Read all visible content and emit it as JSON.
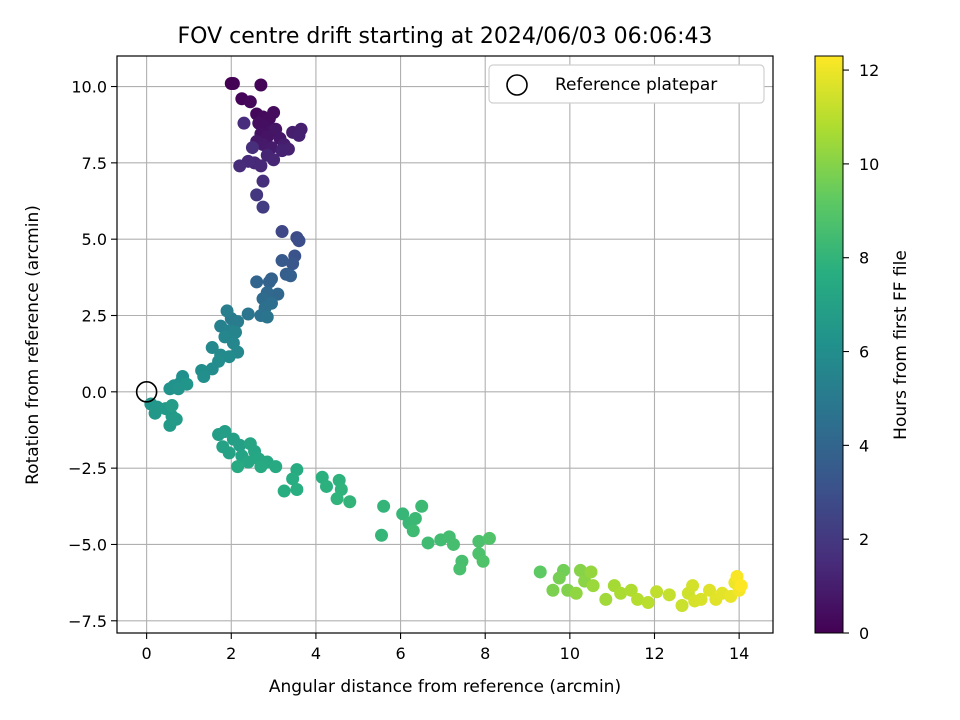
{
  "chart_data": {
    "type": "scatter",
    "title": "FOV centre drift starting at 2024/06/03 06:06:43",
    "xlabel": "Angular distance from reference (arcmin)",
    "ylabel": "Rotation from reference (arcmin)",
    "xlim": [
      -0.7,
      14.8
    ],
    "ylim": [
      -7.9,
      11.0
    ],
    "xticks": [
      0,
      2,
      4,
      6,
      8,
      10,
      12,
      14
    ],
    "yticks": [
      -7.5,
      -5.0,
      -2.5,
      0.0,
      2.5,
      5.0,
      7.5,
      10.0
    ],
    "xtick_labels": [
      "0",
      "2",
      "4",
      "6",
      "8",
      "10",
      "12",
      "14"
    ],
    "ytick_labels": [
      "−7.5",
      "−5.0",
      "−2.5",
      "0.0",
      "2.5",
      "5.0",
      "7.5",
      "10.0"
    ],
    "grid": true,
    "legend": {
      "position": "top-right",
      "entries": [
        {
          "label": "Reference platepar",
          "marker": "open-circle"
        }
      ]
    },
    "reference_point": {
      "x": 0.0,
      "y": 0.0
    },
    "colorbar": {
      "label": "Hours from first FF file",
      "colormap": "viridis",
      "range": [
        0,
        12.3
      ],
      "ticks": [
        0,
        2,
        4,
        6,
        8,
        10,
        12
      ],
      "tick_labels": [
        "0",
        "2",
        "4",
        "6",
        "8",
        "10",
        "12"
      ]
    },
    "series": [
      {
        "color_by": "hours",
        "points": [
          {
            "x": 2.0,
            "y": 10.1,
            "c": 0.0
          },
          {
            "x": 2.05,
            "y": 10.1,
            "c": 0.05
          },
          {
            "x": 2.7,
            "y": 10.05,
            "c": 0.1
          },
          {
            "x": 2.25,
            "y": 9.6,
            "c": 0.15
          },
          {
            "x": 2.45,
            "y": 9.5,
            "c": 0.2
          },
          {
            "x": 2.6,
            "y": 9.1,
            "c": 0.25
          },
          {
            "x": 2.75,
            "y": 9.0,
            "c": 0.3
          },
          {
            "x": 2.9,
            "y": 8.95,
            "c": 0.35
          },
          {
            "x": 3.0,
            "y": 9.15,
            "c": 0.4
          },
          {
            "x": 2.65,
            "y": 8.8,
            "c": 0.45
          },
          {
            "x": 2.8,
            "y": 8.7,
            "c": 0.5
          },
          {
            "x": 2.95,
            "y": 8.55,
            "c": 0.55
          },
          {
            "x": 2.7,
            "y": 8.45,
            "c": 0.6
          },
          {
            "x": 2.85,
            "y": 8.35,
            "c": 0.65
          },
          {
            "x": 3.05,
            "y": 8.6,
            "c": 0.7
          },
          {
            "x": 3.15,
            "y": 8.3,
            "c": 0.75
          },
          {
            "x": 2.6,
            "y": 8.2,
            "c": 0.8
          },
          {
            "x": 2.75,
            "y": 8.1,
            "c": 0.85
          },
          {
            "x": 2.95,
            "y": 8.0,
            "c": 0.9
          },
          {
            "x": 3.25,
            "y": 8.1,
            "c": 0.95
          },
          {
            "x": 3.45,
            "y": 8.5,
            "c": 1.0
          },
          {
            "x": 3.65,
            "y": 8.6,
            "c": 1.05
          },
          {
            "x": 3.6,
            "y": 8.4,
            "c": 1.1
          },
          {
            "x": 3.35,
            "y": 7.95,
            "c": 1.15
          },
          {
            "x": 3.2,
            "y": 7.9,
            "c": 1.2
          },
          {
            "x": 2.85,
            "y": 7.75,
            "c": 1.25
          },
          {
            "x": 3.0,
            "y": 7.6,
            "c": 1.3
          },
          {
            "x": 2.55,
            "y": 7.5,
            "c": 1.35
          },
          {
            "x": 2.7,
            "y": 7.4,
            "c": 1.4
          },
          {
            "x": 2.4,
            "y": 7.55,
            "c": 1.45
          },
          {
            "x": 2.2,
            "y": 7.4,
            "c": 1.5
          },
          {
            "x": 2.3,
            "y": 8.8,
            "c": 1.55
          },
          {
            "x": 2.5,
            "y": 8.0,
            "c": 1.6
          },
          {
            "x": 2.75,
            "y": 6.9,
            "c": 1.65
          },
          {
            "x": 2.6,
            "y": 6.45,
            "c": 1.9
          },
          {
            "x": 2.75,
            "y": 6.05,
            "c": 2.2
          },
          {
            "x": 3.2,
            "y": 5.25,
            "c": 2.6
          },
          {
            "x": 3.55,
            "y": 5.05,
            "c": 2.8
          },
          {
            "x": 3.6,
            "y": 4.95,
            "c": 2.9
          },
          {
            "x": 3.5,
            "y": 4.45,
            "c": 3.1
          },
          {
            "x": 3.45,
            "y": 4.2,
            "c": 3.3
          },
          {
            "x": 3.2,
            "y": 4.3,
            "c": 3.4
          },
          {
            "x": 3.3,
            "y": 3.85,
            "c": 3.6
          },
          {
            "x": 3.4,
            "y": 3.8,
            "c": 3.7
          },
          {
            "x": 2.95,
            "y": 3.7,
            "c": 3.8
          },
          {
            "x": 2.9,
            "y": 3.6,
            "c": 3.9
          },
          {
            "x": 2.6,
            "y": 3.6,
            "c": 4.0
          },
          {
            "x": 3.1,
            "y": 3.2,
            "c": 4.1
          },
          {
            "x": 2.85,
            "y": 3.25,
            "c": 4.2
          },
          {
            "x": 2.75,
            "y": 3.05,
            "c": 4.3
          },
          {
            "x": 2.95,
            "y": 2.9,
            "c": 4.4
          },
          {
            "x": 2.8,
            "y": 2.75,
            "c": 4.5
          },
          {
            "x": 2.7,
            "y": 2.5,
            "c": 4.6
          },
          {
            "x": 2.85,
            "y": 2.45,
            "c": 4.7
          },
          {
            "x": 2.4,
            "y": 2.55,
            "c": 4.8
          },
          {
            "x": 2.0,
            "y": 2.4,
            "c": 5.0
          },
          {
            "x": 2.15,
            "y": 2.3,
            "c": 5.1
          },
          {
            "x": 1.9,
            "y": 2.65,
            "c": 5.2
          },
          {
            "x": 1.75,
            "y": 2.15,
            "c": 5.3
          },
          {
            "x": 1.95,
            "y": 2.0,
            "c": 5.4
          },
          {
            "x": 2.1,
            "y": 1.95,
            "c": 5.5
          },
          {
            "x": 1.85,
            "y": 1.8,
            "c": 5.6
          },
          {
            "x": 2.05,
            "y": 1.6,
            "c": 5.65
          },
          {
            "x": 2.15,
            "y": 1.3,
            "c": 5.7
          },
          {
            "x": 1.55,
            "y": 1.45,
            "c": 5.75
          },
          {
            "x": 1.75,
            "y": 1.2,
            "c": 5.8
          },
          {
            "x": 1.95,
            "y": 1.15,
            "c": 5.85
          },
          {
            "x": 1.7,
            "y": 1.0,
            "c": 5.9
          },
          {
            "x": 1.55,
            "y": 0.75,
            "c": 5.95
          },
          {
            "x": 1.3,
            "y": 0.7,
            "c": 6.0
          },
          {
            "x": 1.35,
            "y": 0.5,
            "c": 6.05
          },
          {
            "x": 0.85,
            "y": 0.5,
            "c": 6.1
          },
          {
            "x": 0.8,
            "y": 0.3,
            "c": 6.15
          },
          {
            "x": 0.65,
            "y": 0.2,
            "c": 6.2
          },
          {
            "x": 0.55,
            "y": 0.1,
            "c": 6.25
          },
          {
            "x": 0.75,
            "y": 0.1,
            "c": 6.3
          },
          {
            "x": 0.95,
            "y": 0.25,
            "c": 6.35
          },
          {
            "x": 0.1,
            "y": -0.4,
            "c": 6.4
          },
          {
            "x": 0.25,
            "y": -0.5,
            "c": 6.45
          },
          {
            "x": 0.2,
            "y": -0.7,
            "c": 6.5
          },
          {
            "x": 0.45,
            "y": -0.55,
            "c": 6.55
          },
          {
            "x": 0.6,
            "y": -0.8,
            "c": 6.6
          },
          {
            "x": 0.55,
            "y": -1.1,
            "c": 6.65
          },
          {
            "x": 0.7,
            "y": -0.9,
            "c": 6.7
          },
          {
            "x": 0.6,
            "y": -0.45,
            "c": 6.75
          },
          {
            "x": 1.7,
            "y": -1.4,
            "c": 6.8
          },
          {
            "x": 1.85,
            "y": -1.3,
            "c": 6.85
          },
          {
            "x": 2.05,
            "y": -1.55,
            "c": 6.9
          },
          {
            "x": 2.2,
            "y": -1.75,
            "c": 6.95
          },
          {
            "x": 1.8,
            "y": -1.8,
            "c": 7.0
          },
          {
            "x": 1.95,
            "y": -2.0,
            "c": 7.05
          },
          {
            "x": 2.25,
            "y": -2.1,
            "c": 7.1
          },
          {
            "x": 2.45,
            "y": -1.7,
            "c": 7.15
          },
          {
            "x": 2.55,
            "y": -1.95,
            "c": 7.2
          },
          {
            "x": 2.4,
            "y": -2.3,
            "c": 7.25
          },
          {
            "x": 2.65,
            "y": -2.2,
            "c": 7.3
          },
          {
            "x": 2.85,
            "y": -2.3,
            "c": 7.35
          },
          {
            "x": 3.05,
            "y": -2.45,
            "c": 7.4
          },
          {
            "x": 2.7,
            "y": -2.45,
            "c": 7.45
          },
          {
            "x": 2.15,
            "y": -2.45,
            "c": 7.5
          },
          {
            "x": 3.55,
            "y": -2.55,
            "c": 7.55
          },
          {
            "x": 3.45,
            "y": -2.85,
            "c": 7.6
          },
          {
            "x": 3.25,
            "y": -3.25,
            "c": 7.65
          },
          {
            "x": 3.55,
            "y": -3.2,
            "c": 7.7
          },
          {
            "x": 4.15,
            "y": -2.8,
            "c": 7.75
          },
          {
            "x": 4.25,
            "y": -3.1,
            "c": 7.8
          },
          {
            "x": 4.55,
            "y": -2.9,
            "c": 7.85
          },
          {
            "x": 4.6,
            "y": -3.2,
            "c": 7.9
          },
          {
            "x": 4.5,
            "y": -3.5,
            "c": 7.95
          },
          {
            "x": 4.8,
            "y": -3.6,
            "c": 8.0
          },
          {
            "x": 5.6,
            "y": -3.75,
            "c": 8.05
          },
          {
            "x": 5.55,
            "y": -4.7,
            "c": 8.1
          },
          {
            "x": 6.05,
            "y": -4.0,
            "c": 8.15
          },
          {
            "x": 6.2,
            "y": -4.3,
            "c": 8.2
          },
          {
            "x": 6.35,
            "y": -4.15,
            "c": 8.25
          },
          {
            "x": 6.5,
            "y": -3.75,
            "c": 8.3
          },
          {
            "x": 6.3,
            "y": -4.55,
            "c": 8.35
          },
          {
            "x": 6.65,
            "y": -4.95,
            "c": 8.4
          },
          {
            "x": 6.95,
            "y": -4.85,
            "c": 8.45
          },
          {
            "x": 7.15,
            "y": -4.75,
            "c": 8.5
          },
          {
            "x": 7.25,
            "y": -5.0,
            "c": 8.55
          },
          {
            "x": 7.45,
            "y": -5.55,
            "c": 8.6
          },
          {
            "x": 7.4,
            "y": -5.8,
            "c": 8.65
          },
          {
            "x": 7.85,
            "y": -4.9,
            "c": 8.7
          },
          {
            "x": 7.85,
            "y": -5.3,
            "c": 8.75
          },
          {
            "x": 7.95,
            "y": -5.55,
            "c": 8.8
          },
          {
            "x": 8.1,
            "y": -4.8,
            "c": 8.85
          },
          {
            "x": 9.3,
            "y": -5.9,
            "c": 9.2
          },
          {
            "x": 9.85,
            "y": -5.85,
            "c": 9.6
          },
          {
            "x": 9.75,
            "y": -6.1,
            "c": 9.7
          },
          {
            "x": 9.6,
            "y": -6.5,
            "c": 9.8
          },
          {
            "x": 9.95,
            "y": -6.5,
            "c": 9.9
          },
          {
            "x": 10.25,
            "y": -5.85,
            "c": 10.0
          },
          {
            "x": 10.35,
            "y": -6.2,
            "c": 10.1
          },
          {
            "x": 10.15,
            "y": -6.6,
            "c": 10.2
          },
          {
            "x": 10.5,
            "y": -5.9,
            "c": 10.3
          },
          {
            "x": 10.55,
            "y": -6.35,
            "c": 10.4
          },
          {
            "x": 10.85,
            "y": -6.8,
            "c": 10.5
          },
          {
            "x": 11.05,
            "y": -6.35,
            "c": 10.6
          },
          {
            "x": 11.2,
            "y": -6.6,
            "c": 10.7
          },
          {
            "x": 11.45,
            "y": -6.5,
            "c": 10.8
          },
          {
            "x": 11.6,
            "y": -6.8,
            "c": 10.9
          },
          {
            "x": 11.85,
            "y": -6.9,
            "c": 11.0
          },
          {
            "x": 12.05,
            "y": -6.55,
            "c": 11.1
          },
          {
            "x": 12.35,
            "y": -6.65,
            "c": 11.2
          },
          {
            "x": 12.65,
            "y": -7.0,
            "c": 11.3
          },
          {
            "x": 12.8,
            "y": -6.6,
            "c": 11.4
          },
          {
            "x": 12.9,
            "y": -6.35,
            "c": 11.5
          },
          {
            "x": 12.95,
            "y": -6.85,
            "c": 11.55
          },
          {
            "x": 13.1,
            "y": -6.8,
            "c": 11.6
          },
          {
            "x": 13.3,
            "y": -6.5,
            "c": 11.7
          },
          {
            "x": 13.45,
            "y": -6.8,
            "c": 11.75
          },
          {
            "x": 13.6,
            "y": -6.6,
            "c": 11.8
          },
          {
            "x": 13.8,
            "y": -6.7,
            "c": 11.9
          },
          {
            "x": 13.9,
            "y": -6.25,
            "c": 12.0
          },
          {
            "x": 14.0,
            "y": -6.5,
            "c": 12.1
          },
          {
            "x": 13.95,
            "y": -6.05,
            "c": 12.2
          },
          {
            "x": 14.05,
            "y": -6.35,
            "c": 12.3
          }
        ]
      }
    ]
  }
}
